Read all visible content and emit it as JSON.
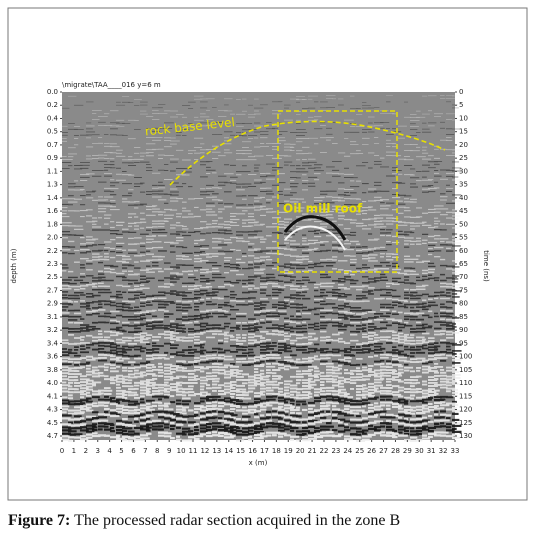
{
  "figure": {
    "header": "\\migrate\\TAA____016  y=6 m",
    "y_label": "depth (m)",
    "y_ticks": [
      "0.0",
      "0.2",
      "0.4",
      "0.5",
      "0.7",
      "0.9",
      "1.1",
      "1.3",
      "1.4",
      "1.6",
      "1.8",
      "2.0",
      "2.2",
      "2.3",
      "2.5",
      "2.7",
      "2.9",
      "3.1",
      "3.2",
      "3.4",
      "3.6",
      "3.8",
      "4.0",
      "4.1",
      "4.3",
      "4.5",
      "4.7"
    ],
    "y2_label": "time (ns)",
    "y2_ticks": [
      "0",
      "5",
      "10",
      "15",
      "20",
      "25",
      "30",
      "35",
      "40",
      "45",
      "50",
      "55",
      "60",
      "65",
      "70",
      "75",
      "80",
      "85",
      "90",
      "95",
      "100",
      "105",
      "110",
      "115",
      "120",
      "125",
      "130"
    ],
    "x_label": "x (m)",
    "x_ticks": [
      "0",
      "1",
      "2",
      "3",
      "4",
      "5",
      "6",
      "7",
      "8",
      "9",
      "10",
      "11",
      "12",
      "13",
      "14",
      "15",
      "16",
      "17",
      "18",
      "19",
      "20",
      "21",
      "22",
      "23",
      "24",
      "25",
      "26",
      "27",
      "28",
      "29",
      "30",
      "31",
      "32",
      "33"
    ],
    "annotations": [
      "rock base level",
      "Oil mill roof"
    ]
  },
  "caption": {
    "label": "Figure 7:",
    "text": "The processed radar section acquired in the zone B"
  }
}
